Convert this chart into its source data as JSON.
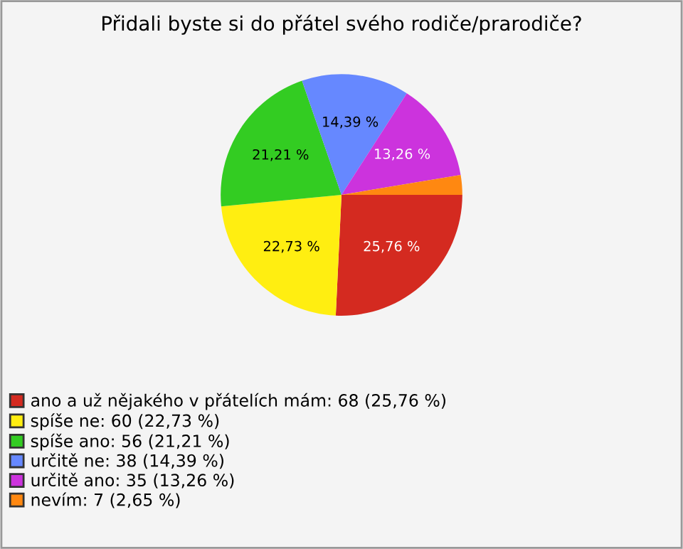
{
  "chart_data": {
    "type": "pie",
    "title": "Přidali byste si do přátel svého rodiče/prarodiče?",
    "categories": [
      "ano a už nějakého v přátelích mám: 68 (25,76 %)",
      "spíše ne: 60 (22,73 %)",
      "spíše ano: 56 (21,21 %)",
      "určitě ne: 38 (14,39 %)",
      "určitě ano: 35 (13,26 %)",
      "nevím: 7 (2,65 %)"
    ],
    "values": [
      25.76,
      22.73,
      21.21,
      14.39,
      13.26,
      2.65
    ],
    "value_labels": [
      "25,76 %",
      "22,73 %",
      "21,21 %",
      "14,39 %",
      "13,26 %",
      null
    ],
    "colors": [
      "#d42a20",
      "#ffee11",
      "#33cc22",
      "#6688ff",
      "#cc33dd",
      "#ff8811"
    ],
    "legend": "bottom left"
  }
}
